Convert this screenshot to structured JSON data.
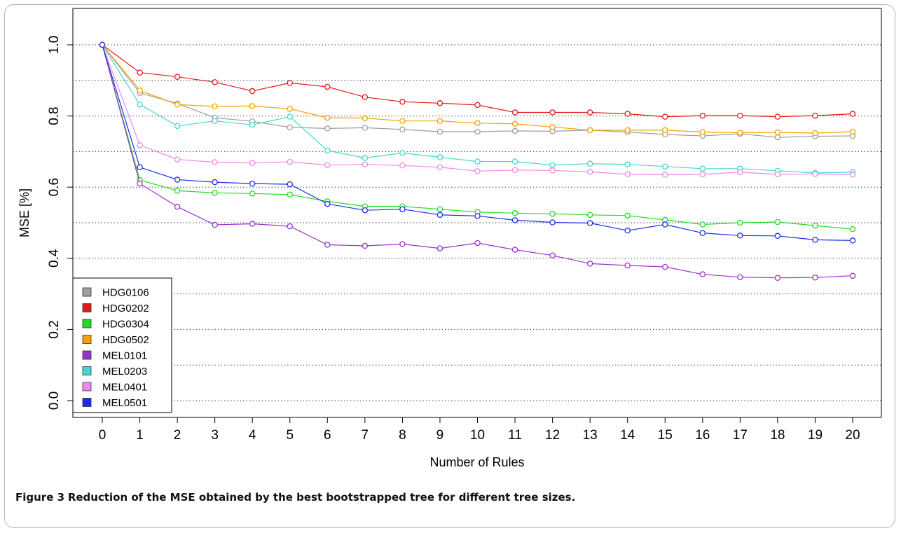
{
  "caption": {
    "label": "Figure 3",
    "text": "Reduction of the MSE obtained by the best bootstrapped tree for different tree sizes."
  },
  "chart_data": {
    "type": "line",
    "xlabel": "Number of Rules",
    "ylabel": "MSE [%]",
    "xlim": [
      0,
      20
    ],
    "ylim": [
      0,
      1
    ],
    "x": [
      0,
      1,
      2,
      3,
      4,
      5,
      6,
      7,
      8,
      9,
      10,
      11,
      12,
      13,
      14,
      15,
      16,
      17,
      18,
      19,
      20
    ],
    "x_ticks": [
      "0",
      "1",
      "2",
      "3",
      "4",
      "5",
      "6",
      "7",
      "8",
      "9",
      "10",
      "11",
      "12",
      "13",
      "14",
      "15",
      "16",
      "17",
      "18",
      "19",
      "20"
    ],
    "y_ticks": [
      0.0,
      0.2,
      0.4,
      0.6,
      0.8,
      1.0
    ],
    "y_tick_labels": [
      "0.0",
      "0.2",
      "0.4",
      "0.6",
      "0.8",
      "1.0"
    ],
    "grid": "horizontal dotted",
    "legend_position": "bottom-left",
    "series": [
      {
        "name": "HDG0106",
        "color": "#9e9e9e",
        "values": [
          1.0,
          0.865,
          0.835,
          0.795,
          0.785,
          0.768,
          0.765,
          0.767,
          0.762,
          0.756,
          0.756,
          0.758,
          0.757,
          0.76,
          0.755,
          0.748,
          0.744,
          0.75,
          0.74,
          0.743,
          0.744
        ]
      },
      {
        "name": "HDG0202",
        "color": "#e41a1c",
        "values": [
          1.0,
          0.922,
          0.91,
          0.895,
          0.87,
          0.893,
          0.882,
          0.853,
          0.84,
          0.836,
          0.831,
          0.81,
          0.81,
          0.81,
          0.806,
          0.798,
          0.801,
          0.801,
          0.798,
          0.801,
          0.806
        ]
      },
      {
        "name": "HDG0304",
        "color": "#22dd22",
        "values": [
          1.0,
          0.62,
          0.59,
          0.584,
          0.582,
          0.579,
          0.56,
          0.546,
          0.546,
          0.538,
          0.53,
          0.527,
          0.525,
          0.522,
          0.52,
          0.508,
          0.495,
          0.5,
          0.502,
          0.492,
          0.482
        ]
      },
      {
        "name": "HDG0502",
        "color": "#f5a300",
        "values": [
          1.0,
          0.872,
          0.832,
          0.827,
          0.828,
          0.82,
          0.795,
          0.794,
          0.786,
          0.786,
          0.78,
          0.778,
          0.769,
          0.76,
          0.76,
          0.76,
          0.755,
          0.753,
          0.754,
          0.752,
          0.756
        ]
      },
      {
        "name": "MEL0101",
        "color": "#9933cc",
        "values": [
          1.0,
          0.61,
          0.545,
          0.494,
          0.497,
          0.49,
          0.438,
          0.435,
          0.44,
          0.428,
          0.443,
          0.424,
          0.408,
          0.385,
          0.38,
          0.376,
          0.355,
          0.347,
          0.345,
          0.346,
          0.351
        ]
      },
      {
        "name": "MEL0203",
        "color": "#40d8cc",
        "values": [
          1.0,
          0.832,
          0.772,
          0.786,
          0.775,
          0.798,
          0.703,
          0.682,
          0.696,
          0.684,
          0.672,
          0.672,
          0.662,
          0.666,
          0.664,
          0.658,
          0.652,
          0.652,
          0.646,
          0.64,
          0.642
        ]
      },
      {
        "name": "MEL0401",
        "color": "#ee88ee",
        "values": [
          1.0,
          0.718,
          0.678,
          0.67,
          0.668,
          0.671,
          0.662,
          0.664,
          0.661,
          0.656,
          0.645,
          0.648,
          0.647,
          0.643,
          0.636,
          0.635,
          0.636,
          0.642,
          0.636,
          0.637,
          0.635
        ]
      },
      {
        "name": "MEL0501",
        "color": "#1a2ee8",
        "values": [
          1.0,
          0.656,
          0.621,
          0.614,
          0.61,
          0.608,
          0.553,
          0.535,
          0.538,
          0.522,
          0.519,
          0.507,
          0.501,
          0.499,
          0.478,
          0.495,
          0.471,
          0.464,
          0.463,
          0.452,
          0.45
        ]
      }
    ]
  }
}
